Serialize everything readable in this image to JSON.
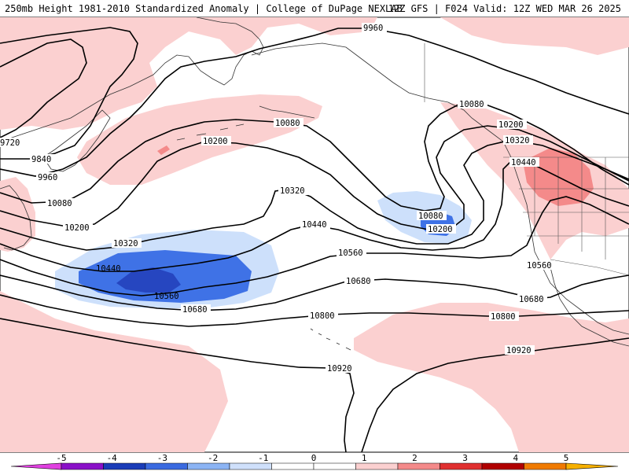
{
  "header": {
    "title": "250mb Height 1981-2010 Standardized Anomaly | College of DuPage NEXLAB",
    "run_info": "12Z GFS | F024 Valid: 12Z WED MAR 26 2025"
  },
  "contour_labels": {
    "c9960": "9960",
    "c9720": "9720",
    "c9840": "9840",
    "c9960b": "9960",
    "c10080a": "10080",
    "c10080b": "10080",
    "c10080c": "10080",
    "c10080d": "10080",
    "c10200a": "10200",
    "c10200b": "10200",
    "c10200c": "10200",
    "c10200d": "10200",
    "c10320a": "10320",
    "c10320b": "10320",
    "c10320c": "10320",
    "c10440a": "10440",
    "c10440b": "10440",
    "c10440c": "10440",
    "c10560a": "10560",
    "c10560b": "10560",
    "c10560c": "10560",
    "c10680a": "10680",
    "c10680b": "10680",
    "c10680c": "10680",
    "c10800a": "10800",
    "c10800b": "10800",
    "c10920a": "10920",
    "c10920b": "10920"
  },
  "colorbar": {
    "ticks": [
      "-5",
      "-4",
      "-3",
      "-2",
      "-1",
      "0",
      "1",
      "2",
      "3",
      "4",
      "5"
    ],
    "colors": [
      "#e040e0",
      "#8a10c8",
      "#1a3cb8",
      "#3a6ae0",
      "#8cb4f4",
      "#cfe0fb",
      "#ffffff",
      "#ffffff",
      "#fbd0d0",
      "#f48a8a",
      "#e03030",
      "#b00000",
      "#f07a00",
      "#f6b000"
    ]
  },
  "anomaly_colors": {
    "pos1": "#fbd0d0",
    "pos2": "#f48a8a",
    "pos3": "#e24a4a",
    "neg1": "#cde0fb",
    "neg2": "#3f72e6",
    "neg3": "#2646c0"
  }
}
